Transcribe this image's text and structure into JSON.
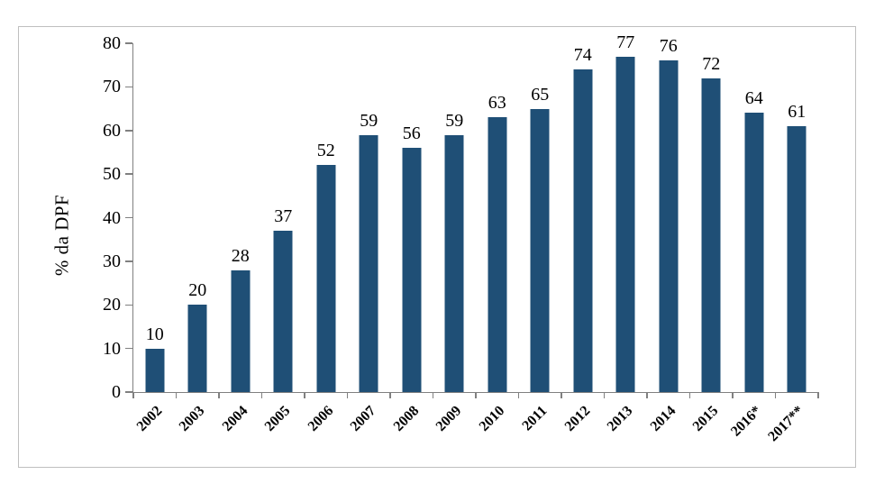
{
  "chart_data": {
    "type": "bar",
    "ylabel": "% da DPF",
    "categories": [
      "2002",
      "2003",
      "2004",
      "2005",
      "2006",
      "2007",
      "2008",
      "2009",
      "2010",
      "2011",
      "2012",
      "2013",
      "2014",
      "2015",
      "2016*",
      "2017**"
    ],
    "values": [
      10,
      20,
      28,
      37,
      52,
      59,
      56,
      59,
      63,
      65,
      74,
      77,
      76,
      72,
      64,
      61
    ],
    "data_labels": [
      "10",
      "20",
      "28",
      "37",
      "52",
      "59",
      "56",
      "59",
      "63",
      "65",
      "74",
      "77",
      "76",
      "72",
      "64",
      "61"
    ],
    "ylim": [
      0,
      80
    ],
    "yticks": [
      0,
      10,
      20,
      30,
      40,
      50,
      60,
      70,
      80
    ],
    "grid": "off",
    "legend": "none",
    "bar_orientation": "vertical",
    "x_label_rotation_deg": -45,
    "colors": {
      "bar": "#1F4F76",
      "axis": "#808080",
      "frame_border": "#BFBFBF",
      "text": "#000000",
      "background": "#FFFFFF"
    }
  }
}
